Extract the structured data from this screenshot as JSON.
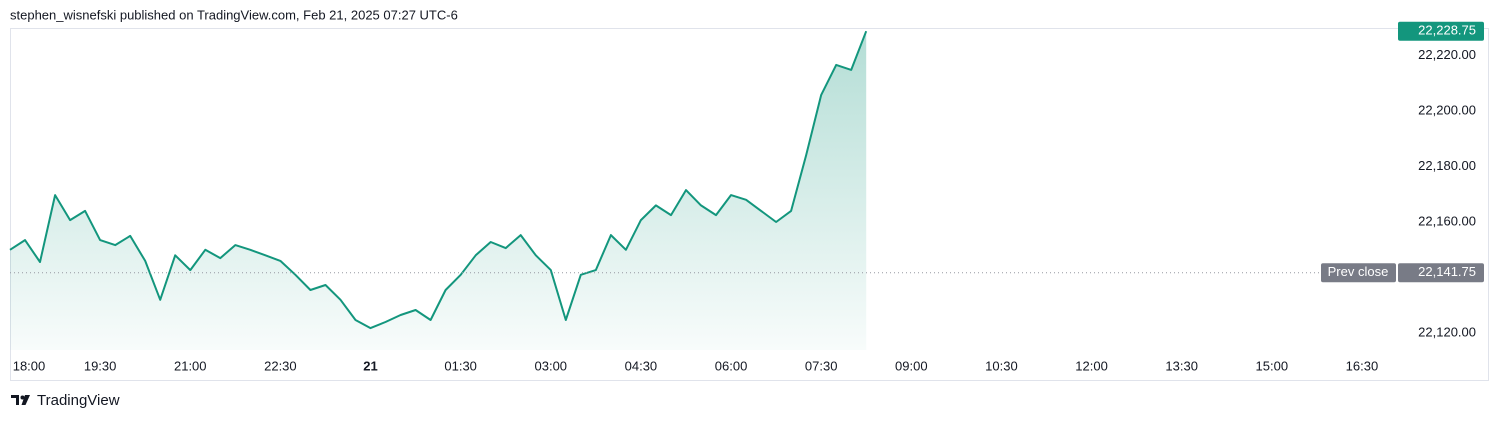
{
  "header": "stephen_wisnefski published on TradingView.com, Feb 21, 2025 07:27 UTC-6",
  "footer": "TradingView",
  "chart_data": {
    "type": "area-line",
    "color": "#13967d",
    "values": [
      22150,
      22153.5,
      22145.6,
      22169.7,
      22160.7,
      22164,
      22153.5,
      22151.7,
      22155,
      22146,
      22132,
      22148,
      22142.7,
      22150,
      22147,
      22151.7,
      22150,
      22148,
      22146,
      22141,
      22135.5,
      22137.3,
      22132,
      22124.7,
      22121.8,
      22124,
      22126.5,
      22128.3,
      22124.7,
      22135.5,
      22141,
      22148,
      22152.8,
      22150.6,
      22155.3,
      22148,
      22142.7,
      22124.7,
      22141,
      22142.7,
      22155.3,
      22150,
      22160.7,
      22166,
      22162.5,
      22171.5,
      22166,
      22162.5,
      22169.7,
      22168,
      22164,
      22160,
      22164,
      22184,
      22205.8,
      22216.6,
      22214.8,
      22228.75
    ],
    "xlim": [
      0,
      92.2
    ],
    "xticks": [
      {
        "value": 0,
        "label": "18:00"
      },
      {
        "value": 6,
        "label": "19:30"
      },
      {
        "value": 12,
        "label": "21:00"
      },
      {
        "value": 18,
        "label": "22:30"
      },
      {
        "value": 24,
        "label": "21"
      },
      {
        "value": 30,
        "label": "01:30"
      },
      {
        "value": 36,
        "label": "03:00"
      },
      {
        "value": 42,
        "label": "04:30"
      },
      {
        "value": 48,
        "label": "06:00"
      },
      {
        "value": 54,
        "label": "07:30"
      },
      {
        "value": 60,
        "label": "09:00"
      },
      {
        "value": 66,
        "label": "10:30"
      },
      {
        "value": 72,
        "label": "12:00"
      },
      {
        "value": 78,
        "label": "13:30"
      },
      {
        "value": 84,
        "label": "15:00"
      },
      {
        "value": 90,
        "label": "16:30"
      }
    ],
    "ylim": [
      22113.9,
      22229.9
    ],
    "yticks": [
      {
        "value": 22120,
        "label": "22,120.00"
      },
      {
        "value": 22160,
        "label": "22,160.00"
      },
      {
        "value": 22180,
        "label": "22,180.00"
      },
      {
        "value": 22200,
        "label": "22,200.00"
      },
      {
        "value": 22220,
        "label": "22,220.00"
      }
    ],
    "last_price": {
      "value": 22228.75,
      "label": "22,228.75"
    },
    "prev_close": {
      "name": "Prev close",
      "value": 22141.75,
      "label": "22,141.75"
    }
  }
}
